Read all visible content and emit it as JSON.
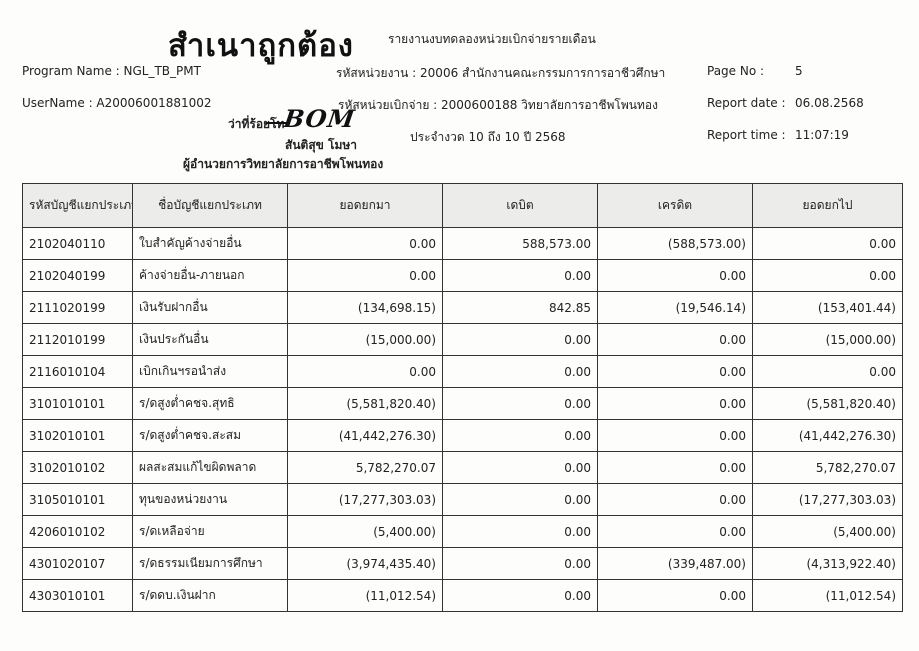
{
  "stamp": "สำเนาถูกต้อง",
  "report_title": "รายงานงบทดลองหน่วยเบิกจ่ายรายเดือน",
  "program_name": "Program Name : NGL_TB_PMT",
  "username": "UserName : A20006001881002",
  "agency": "รหัสหน่วยงาน : 20006 สำนักงานคณะกรรมการการอาชีวศึกษา",
  "disbursing_unit": "รหัสหน่วยเบิกจ่าย : 2000600188 วิทยาลัยการอาชีพโพนทอง",
  "period": "ประจำงวด 10 ถึง 10 ปี 2568",
  "page_no_label": "Page No :",
  "page_no": "5",
  "report_date_label": "Report date :",
  "report_date": "06.08.2568",
  "report_time_label": "Report time :",
  "report_time": "11:07:19",
  "signature": {
    "rank": "ว่าที่ร้อยโท",
    "handwriting": "BOM",
    "name": "สันติสุข โมษา",
    "position": "ผู้อำนวยการวิทยาลัยการอาชีพโพนทอง"
  },
  "table": {
    "headers": [
      "รหัสบัญชีแยกประเภท",
      "ชื่อบัญชีแยกประเภท",
      "ยอดยกมา",
      "เดบิต",
      "เครดิต",
      "ยอดยกไป"
    ],
    "rows": [
      [
        "2102040110",
        "ใบสำคัญค้างจ่ายอื่น",
        "0.00",
        "588,573.00",
        "(588,573.00)",
        "0.00"
      ],
      [
        "2102040199",
        "ค้างจ่ายอื่น-ภายนอก",
        "0.00",
        "0.00",
        "0.00",
        "0.00"
      ],
      [
        "2111020199",
        "เงินรับฝากอื่น",
        "(134,698.15)",
        "842.85",
        "(19,546.14)",
        "(153,401.44)"
      ],
      [
        "2112010199",
        "เงินประกันอื่น",
        "(15,000.00)",
        "0.00",
        "0.00",
        "(15,000.00)"
      ],
      [
        "2116010104",
        "เบิกเกินฯรอนำส่ง",
        "0.00",
        "0.00",
        "0.00",
        "0.00"
      ],
      [
        "3101010101",
        "ร/ดสูงต่ำคชจ.สุทธิ",
        "(5,581,820.40)",
        "0.00",
        "0.00",
        "(5,581,820.40)"
      ],
      [
        "3102010101",
        "ร/ดสูงต่ำคชจ.สะสม",
        "(41,442,276.30)",
        "0.00",
        "0.00",
        "(41,442,276.30)"
      ],
      [
        "3102010102",
        "ผลสะสมแก้ไขผิดพลาด",
        "5,782,270.07",
        "0.00",
        "0.00",
        "5,782,270.07"
      ],
      [
        "3105010101",
        "ทุนของหน่วยงาน",
        "(17,277,303.03)",
        "0.00",
        "0.00",
        "(17,277,303.03)"
      ],
      [
        "4206010102",
        "ร/ดเหลือจ่าย",
        "(5,400.00)",
        "0.00",
        "0.00",
        "(5,400.00)"
      ],
      [
        "4301020107",
        "ร/ดธรรมเนียมการศึกษา",
        "(3,974,435.40)",
        "0.00",
        "(339,487.00)",
        "(4,313,922.40)"
      ],
      [
        "4303010101",
        "ร/ดดบ.เงินฝาก",
        "(11,012.54)",
        "0.00",
        "0.00",
        "(11,012.54)"
      ]
    ]
  }
}
